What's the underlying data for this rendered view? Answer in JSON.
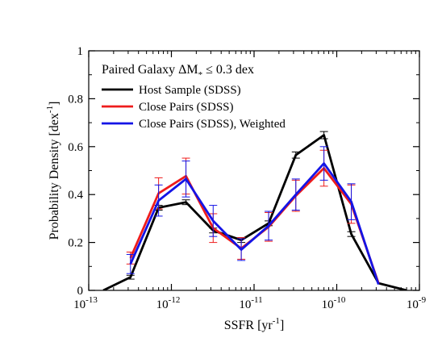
{
  "chart_data": {
    "type": "line",
    "title": "",
    "xlabel": "SSFR [yr",
    "xlabel_sup": "-1",
    "xlabel_end": "]",
    "ylabel": "Probability Density [dex",
    "ylabel_sup": "-1",
    "ylabel_end": "]",
    "xscale": "log",
    "xlim": [
      1e-13,
      1e-09
    ],
    "ylim": [
      0,
      1
    ],
    "x_ticks": [
      {
        "value": 1e-13,
        "base": "10",
        "exp": "-13"
      },
      {
        "value": 1e-12,
        "base": "10",
        "exp": "-12"
      },
      {
        "value": 1e-11,
        "base": "10",
        "exp": "-11"
      },
      {
        "value": 1e-10,
        "base": "10",
        "exp": "-10"
      },
      {
        "value": 1e-09,
        "base": "10",
        "exp": "-9"
      }
    ],
    "y_ticks": [
      {
        "value": 0,
        "label": "0"
      },
      {
        "value": 0.2,
        "label": "0.2"
      },
      {
        "value": 0.4,
        "label": "0.4"
      },
      {
        "value": 0.6,
        "label": "0.6"
      },
      {
        "value": 0.8,
        "label": "0.8"
      },
      {
        "value": 1,
        "label": "1"
      }
    ],
    "grid": false,
    "annotation": {
      "text_before": "Paired Galaxy ΔM",
      "subscript": "*",
      "text_after": " ≤ 0.3 dex"
    },
    "legend_position": "top-left",
    "series": [
      {
        "name": "Host Sample (SDSS)",
        "color": "#000000",
        "points": [
          {
            "x": 1.5e-13,
            "y": 0.0
          },
          {
            "x": 3.2e-13,
            "y": 0.055,
            "err": 0.008
          },
          {
            "x": 7e-13,
            "y": 0.345,
            "err": 0.01
          },
          {
            "x": 1.5e-12,
            "y": 0.368,
            "err": 0.01
          },
          {
            "x": 3.2e-12,
            "y": 0.25,
            "err": 0.01
          },
          {
            "x": 7e-12,
            "y": 0.21,
            "err": 0.01
          },
          {
            "x": 1.5e-11,
            "y": 0.28,
            "err": 0.01
          },
          {
            "x": 3.2e-11,
            "y": 0.565,
            "err": 0.013
          },
          {
            "x": 7e-11,
            "y": 0.648,
            "err": 0.015
          },
          {
            "x": 1.5e-10,
            "y": 0.235,
            "err": 0.01
          },
          {
            "x": 3.2e-10,
            "y": 0.03
          },
          {
            "x": 7e-10,
            "y": 0.0
          }
        ]
      },
      {
        "name": "Close Pairs (SDSS)",
        "color": "#ee1c1c",
        "points": [
          {
            "x": 3.2e-13,
            "y": 0.135,
            "err": 0.025
          },
          {
            "x": 7e-13,
            "y": 0.405,
            "err": 0.065
          },
          {
            "x": 1.5e-12,
            "y": 0.477,
            "err": 0.075
          },
          {
            "x": 3.2e-12,
            "y": 0.26,
            "err": 0.06
          },
          {
            "x": 7e-12,
            "y": 0.175,
            "err": 0.045
          },
          {
            "x": 1.5e-11,
            "y": 0.265,
            "err": 0.06
          },
          {
            "x": 3.2e-11,
            "y": 0.395,
            "err": 0.065
          },
          {
            "x": 7e-11,
            "y": 0.51,
            "err": 0.075
          },
          {
            "x": 1.5e-10,
            "y": 0.36,
            "err": 0.08
          },
          {
            "x": 3.2e-10,
            "y": 0.03
          }
        ]
      },
      {
        "name": "Close Pairs (SDSS), Weighted",
        "color": "#1414e6",
        "points": [
          {
            "x": 3.2e-13,
            "y": 0.11,
            "err": 0.04
          },
          {
            "x": 7e-13,
            "y": 0.375,
            "err": 0.065
          },
          {
            "x": 1.5e-12,
            "y": 0.465,
            "err": 0.075
          },
          {
            "x": 3.2e-12,
            "y": 0.29,
            "err": 0.065
          },
          {
            "x": 7e-12,
            "y": 0.17,
            "err": 0.045
          },
          {
            "x": 1.5e-11,
            "y": 0.27,
            "err": 0.06
          },
          {
            "x": 3.2e-11,
            "y": 0.4,
            "err": 0.065
          },
          {
            "x": 7e-11,
            "y": 0.53,
            "err": 0.07
          },
          {
            "x": 1.5e-10,
            "y": 0.37,
            "err": 0.075
          },
          {
            "x": 3.2e-10,
            "y": 0.025
          }
        ]
      }
    ]
  }
}
